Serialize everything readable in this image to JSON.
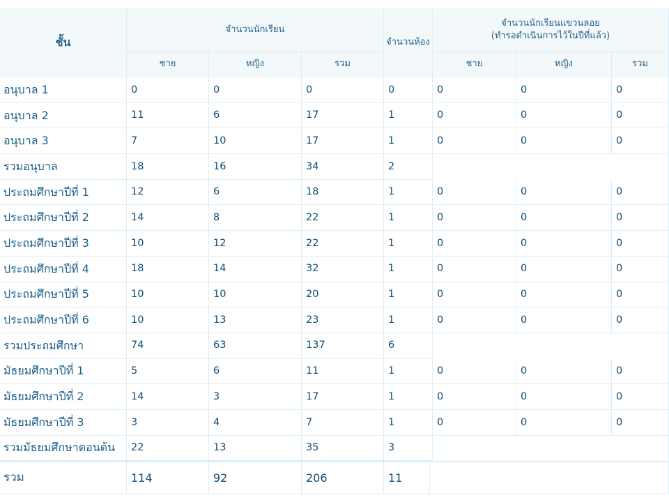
{
  "headers": {
    "level": "ชั้น",
    "students": "จำนวนนักเรียน",
    "male": "ชาย",
    "female": "หญิง",
    "total": "รวม",
    "rooms": "จำนวนห้อง",
    "floating_line1": "จำนวนนักเรียนแขวนลอย",
    "floating_line2": "(ทำรอดำเนินการไว้ในปีที่แล้ว)"
  },
  "rows": [
    {
      "label": "อนุบาล 1",
      "male": "0",
      "female": "0",
      "total": "0",
      "rooms": "0",
      "fm": "0",
      "ff": "0",
      "ft": "0"
    },
    {
      "label": "อนุบาล 2",
      "male": "11",
      "female": "6",
      "total": "17",
      "rooms": "1",
      "fm": "0",
      "ff": "0",
      "ft": "0"
    },
    {
      "label": "อนุบาล 3",
      "male": "7",
      "female": "10",
      "total": "17",
      "rooms": "1",
      "fm": "0",
      "ff": "0",
      "ft": "0"
    },
    {
      "label": "รวมอนุบาล",
      "male": "18",
      "female": "16",
      "total": "34",
      "rooms": "2",
      "fm": null,
      "ff": null,
      "ft": null
    },
    {
      "label": "ประถมศึกษาปีที่ 1",
      "male": "12",
      "female": "6",
      "total": "18",
      "rooms": "1",
      "fm": "0",
      "ff": "0",
      "ft": "0"
    },
    {
      "label": "ประถมศึกษาปีที่ 2",
      "male": "14",
      "female": "8",
      "total": "22",
      "rooms": "1",
      "fm": "0",
      "ff": "0",
      "ft": "0"
    },
    {
      "label": "ประถมศึกษาปีที่ 3",
      "male": "10",
      "female": "12",
      "total": "22",
      "rooms": "1",
      "fm": "0",
      "ff": "0",
      "ft": "0"
    },
    {
      "label": "ประถมศึกษาปีที่ 4",
      "male": "18",
      "female": "14",
      "total": "32",
      "rooms": "1",
      "fm": "0",
      "ff": "0",
      "ft": "0"
    },
    {
      "label": "ประถมศึกษาปีที่ 5",
      "male": "10",
      "female": "10",
      "total": "20",
      "rooms": "1",
      "fm": "0",
      "ff": "0",
      "ft": "0"
    },
    {
      "label": "ประถมศึกษาปีที่ 6",
      "male": "10",
      "female": "13",
      "total": "23",
      "rooms": "1",
      "fm": "0",
      "ff": "0",
      "ft": "0"
    },
    {
      "label": "รวมประถมศึกษา",
      "male": "74",
      "female": "63",
      "total": "137",
      "rooms": "6",
      "fm": null,
      "ff": null,
      "ft": null
    },
    {
      "label": "มัธยมศึกษาปีที่ 1",
      "male": "5",
      "female": "6",
      "total": "11",
      "rooms": "1",
      "fm": "0",
      "ff": "0",
      "ft": "0"
    },
    {
      "label": "มัธยมศึกษาปีที่ 2",
      "male": "14",
      "female": "3",
      "total": "17",
      "rooms": "1",
      "fm": "0",
      "ff": "0",
      "ft": "0"
    },
    {
      "label": "มัธยมศึกษาปีที่ 3",
      "male": "3",
      "female": "4",
      "total": "7",
      "rooms": "1",
      "fm": "0",
      "ff": "0",
      "ft": "0"
    },
    {
      "label": "รวมมัธยมศึกษาตอนต้น",
      "male": "22",
      "female": "13",
      "total": "35",
      "rooms": "3",
      "fm": null,
      "ff": null,
      "ft": null
    }
  ],
  "grand_total": {
    "label": "รวม",
    "male": "114",
    "female": "92",
    "total": "206",
    "rooms": "11"
  }
}
